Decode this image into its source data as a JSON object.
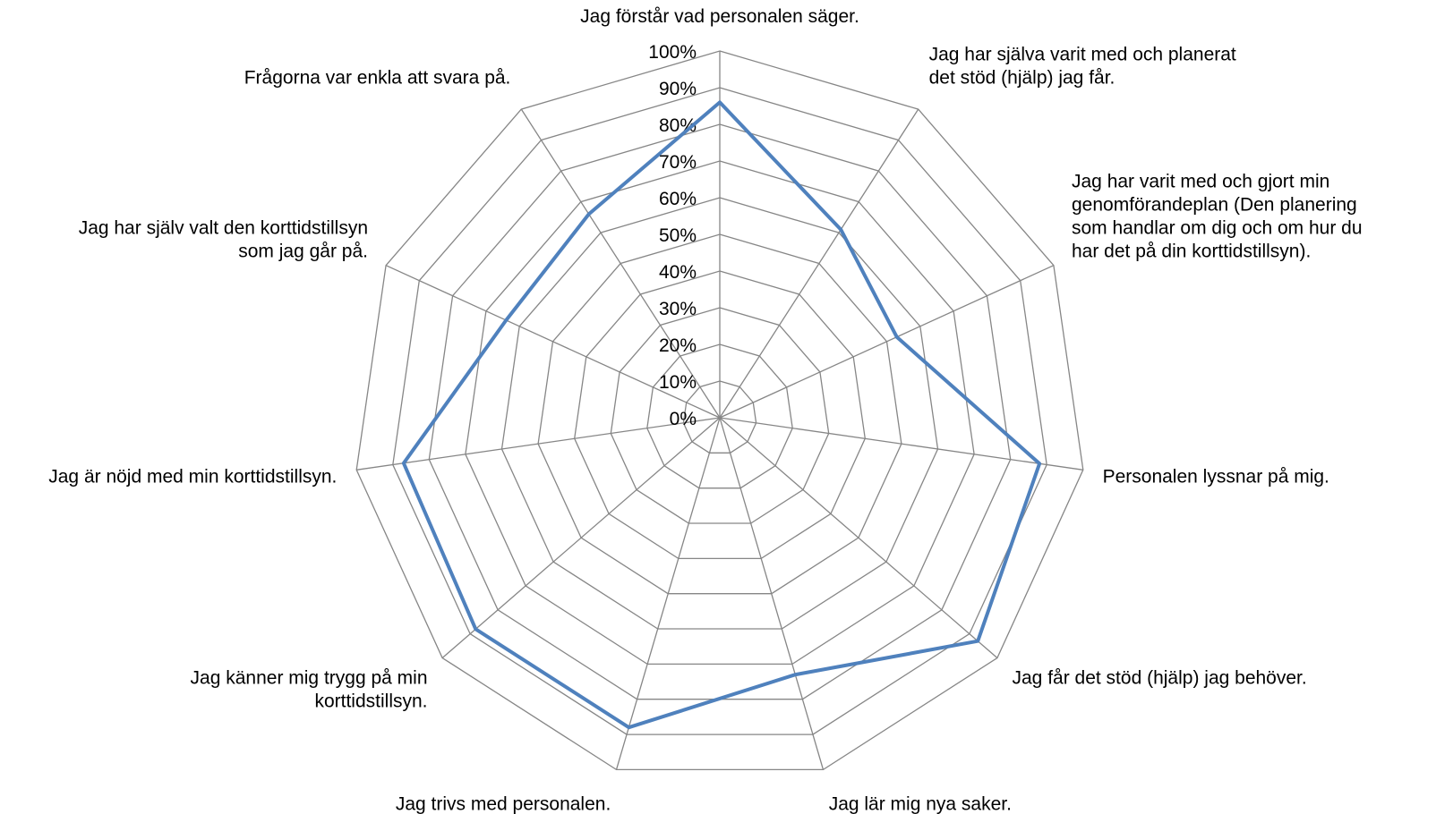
{
  "chart_data": {
    "type": "radar",
    "title": "",
    "rlim": [
      0,
      100
    ],
    "ticks": [
      "0%",
      "10%",
      "20%",
      "30%",
      "40%",
      "50%",
      "60%",
      "70%",
      "80%",
      "90%",
      "100%"
    ],
    "categories": [
      [
        "Jag förstår vad personalen säger."
      ],
      [
        "Jag har själva varit med och planerat",
        "det stöd (hjälp) jag får."
      ],
      [
        "Jag har varit med och gjort min",
        "genomförandeplan (Den planering",
        "som handlar om dig och om hur du",
        "har det på din korttidstillsyn)."
      ],
      [
        "Personalen lyssnar på mig."
      ],
      [
        "Jag får det stöd (hjälp) jag behöver."
      ],
      [
        "Jag lär mig nya saker."
      ],
      [
        "Jag trivs med personalen."
      ],
      [
        "Jag känner mig trygg på min",
        "korttidstillsyn."
      ],
      [
        "Jag är nöjd med min korttidstillsyn."
      ],
      [
        "Jag har själv valt den korttidstillsyn",
        "som jag går på."
      ],
      [
        "Frågorna var enkla att svara på."
      ]
    ],
    "series": [
      {
        "values": [
          86,
          61,
          53,
          88,
          93,
          73,
          88,
          88,
          87,
          64,
          66
        ],
        "color": "#4F81BD"
      }
    ],
    "grid": true,
    "grid_color": "#868686"
  }
}
